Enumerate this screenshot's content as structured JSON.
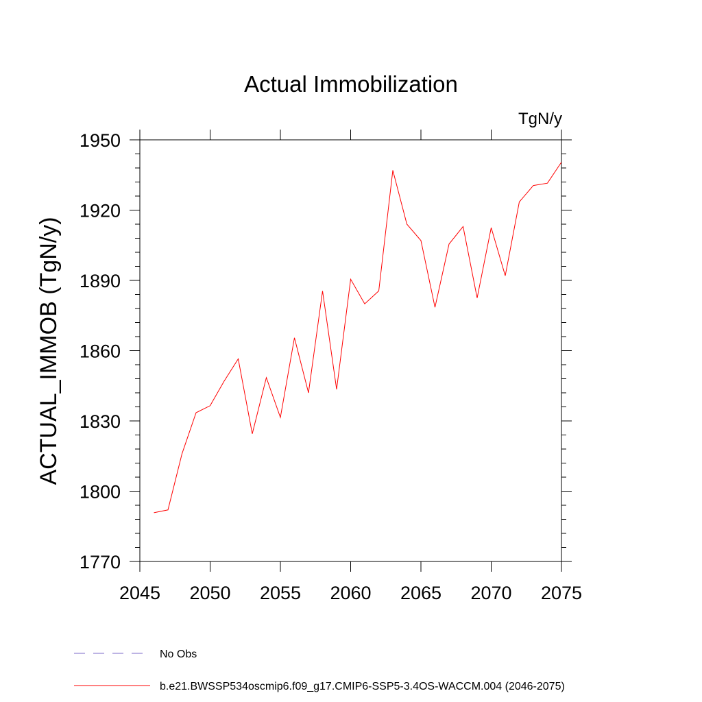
{
  "chart_data": {
    "type": "line",
    "title": "Actual Immobilization",
    "units": "TgN/y",
    "xlabel": "",
    "ylabel": "ACTUAL_IMMOB  (TgN/y)",
    "xlim": [
      2045,
      2075
    ],
    "ylim": [
      1770,
      1950
    ],
    "x_ticks": [
      2045,
      2050,
      2055,
      2060,
      2065,
      2070,
      2075
    ],
    "y_ticks": [
      1770,
      1800,
      1830,
      1860,
      1890,
      1920,
      1950
    ],
    "series": [
      {
        "name": "b.e21.BWSSP534oscmip6.f09_g17.CMIP6-SSP5-3.4OS-WACCM.004 (2046-2075)",
        "color": "#ff0000",
        "style": "solid",
        "x": [
          2046,
          2047,
          2048,
          2049,
          2050,
          2051,
          2052,
          2053,
          2054,
          2055,
          2056,
          2057,
          2058,
          2059,
          2060,
          2061,
          2062,
          2063,
          2064,
          2065,
          2066,
          2067,
          2068,
          2069,
          2070,
          2071,
          2072,
          2073,
          2074,
          2075
        ],
        "y": [
          1790.8,
          1792.0,
          1816.0,
          1833.5,
          1836.5,
          1847.0,
          1856.5,
          1824.5,
          1848.5,
          1831.5,
          1865.5,
          1842.0,
          1885.5,
          1843.5,
          1890.5,
          1880.0,
          1885.5,
          1937.0,
          1914.0,
          1907.0,
          1878.5,
          1905.5,
          1913.0,
          1882.5,
          1912.5,
          1892.0,
          1923.5,
          1930.5,
          1931.5,
          1940.5
        ]
      }
    ],
    "legend": [
      {
        "label": "No Obs",
        "color": "#7b68c8",
        "style": "dashed"
      },
      {
        "label": "b.e21.BWSSP534oscmip6.f09_g17.CMIP6-SSP5-3.4OS-WACCM.004 (2046-2075)",
        "color": "#ff0000",
        "style": "solid"
      }
    ],
    "grid": false,
    "legend_position": "bottom-left"
  }
}
